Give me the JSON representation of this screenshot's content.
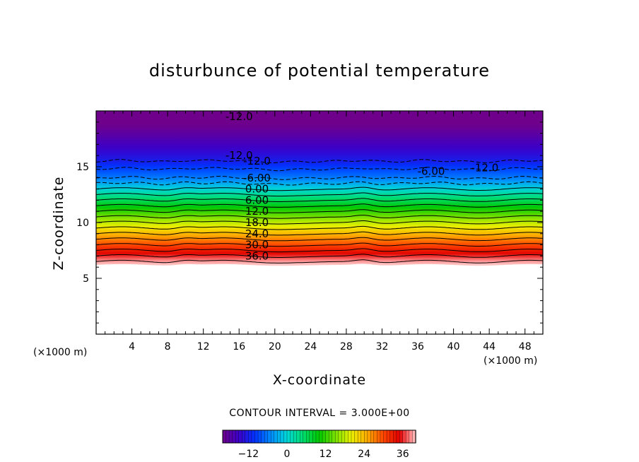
{
  "chart_data": {
    "type": "heatmap",
    "title": "disturbunce of potential temperature",
    "xlabel": "X-coordinate",
    "ylabel": "Z-coordinate",
    "x_unit": "(×1000 m)",
    "y_unit": "(×1000 m)",
    "xlim": [
      0,
      50
    ],
    "ylim": [
      0,
      20
    ],
    "x_ticks": [
      4,
      8,
      12,
      16,
      20,
      24,
      28,
      32,
      36,
      40,
      44,
      48
    ],
    "y_ticks": [
      5,
      10,
      15
    ],
    "contour_interval_text": "CONTOUR INTERVAL = 3.000E+00",
    "contour_interval": 3.0,
    "field_lower_boundary_z": 6.2,
    "contour_levels": [
      {
        "z": 6.5,
        "value": 39
      },
      {
        "z": 7.0,
        "value": 36,
        "label": "36.0"
      },
      {
        "z": 7.5,
        "value": 33
      },
      {
        "z": 8.0,
        "value": 30,
        "label": "30.0"
      },
      {
        "z": 8.5,
        "value": 27
      },
      {
        "z": 9.0,
        "value": 24,
        "label": "24.0"
      },
      {
        "z": 9.5,
        "value": 21
      },
      {
        "z": 10.0,
        "value": 18,
        "label": "18.0"
      },
      {
        "z": 10.5,
        "value": 15
      },
      {
        "z": 11.0,
        "value": 12,
        "label": "12.0"
      },
      {
        "z": 11.5,
        "value": 9
      },
      {
        "z": 12.0,
        "value": 6,
        "label": "6.00"
      },
      {
        "z": 12.5,
        "value": 3
      },
      {
        "z": 13.0,
        "value": 0,
        "label": "0.00"
      },
      {
        "z": 13.5,
        "value": -3
      },
      {
        "z": 14.0,
        "value": -6,
        "label": "-6.00"
      },
      {
        "z": 14.8,
        "value": -9
      },
      {
        "z": 15.5,
        "value": -12,
        "label": "-12.0"
      }
    ],
    "extra_contour_labels": [
      {
        "x": 16,
        "z": 16.0,
        "text": "-12.0"
      },
      {
        "x": 16,
        "z": 19.5,
        "text": "-12.0"
      },
      {
        "x": 37.5,
        "z": 14.6,
        "text": "-6.00"
      },
      {
        "x": 43.5,
        "z": 14.9,
        "text": "-12.0"
      }
    ],
    "colorbar": {
      "range": [
        -20,
        40
      ],
      "ticks": [
        -12,
        0,
        12,
        24,
        36
      ],
      "tick_labels": [
        "−12",
        "0",
        "12",
        "24",
        "36"
      ]
    }
  }
}
